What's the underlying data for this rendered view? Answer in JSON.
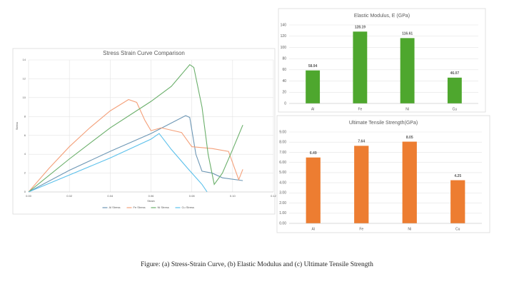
{
  "chart_data": [
    {
      "type": "line",
      "title": "Stress Strain Curve Comparison",
      "x_label": "Strain",
      "y_label": "Stress",
      "xlim": [
        0,
        0.12
      ],
      "xticks": [
        {
          "value": 0,
          "label": "0.00"
        },
        {
          "value": 0.02,
          "label": "0.02"
        },
        {
          "value": 0.04,
          "label": "0.04"
        },
        {
          "value": 0.06,
          "label": "0.06"
        },
        {
          "value": 0.08,
          "label": "0.08"
        },
        {
          "value": 0.1,
          "label": "0.10"
        },
        {
          "value": 0.12,
          "label": "0.12"
        }
      ],
      "ylim": [
        0,
        14
      ],
      "yticks": [
        0,
        2,
        4,
        6,
        8,
        10,
        12,
        14
      ],
      "grid": true,
      "legend": "bottom",
      "series": [
        {
          "name": "Al Stress",
          "color": "#6d97b5",
          "x": [
            0,
            0.02,
            0.04,
            0.06,
            0.077,
            0.079,
            0.082,
            0.085,
            0.09,
            0.095,
            0.105
          ],
          "values": [
            0,
            2.3,
            4.3,
            6.2,
            8.1,
            7.9,
            4,
            2.2,
            2.0,
            1.5,
            1.2
          ]
        },
        {
          "name": "Fe Stress",
          "color": "#f4a07a",
          "x": [
            0,
            0.01,
            0.02,
            0.03,
            0.04,
            0.049,
            0.053,
            0.057,
            0.06,
            0.065,
            0.075,
            0.08,
            0.09,
            0.098,
            0.103,
            0.105
          ],
          "values": [
            0,
            2.5,
            4.8,
            6.8,
            8.6,
            9.8,
            9.5,
            7.6,
            6.5,
            6.8,
            6.3,
            4.8,
            4.6,
            4.3,
            1.3,
            2.4
          ]
        },
        {
          "name": "Ni Stress",
          "color": "#6aaf6a",
          "x": [
            0,
            0.02,
            0.04,
            0.06,
            0.07,
            0.079,
            0.081,
            0.085,
            0.088,
            0.091,
            0.095,
            0.1,
            0.105
          ],
          "values": [
            0,
            3.5,
            6.8,
            9.6,
            11.2,
            13.5,
            13.2,
            9,
            4,
            0.8,
            2,
            4.5,
            7.1
          ]
        },
        {
          "name": "Cu Stress",
          "color": "#5bc0eb",
          "x": [
            0,
            0.02,
            0.04,
            0.06,
            0.064,
            0.07,
            0.078,
            0.085,
            0.0875
          ],
          "values": [
            0,
            1.8,
            3.6,
            5.6,
            6.2,
            4.5,
            2.5,
            0.8,
            0
          ]
        }
      ]
    },
    {
      "type": "bar",
      "title": "Elastic Modulus, E (GPa)",
      "categories": [
        "Al",
        "Fe",
        "Ni",
        "Cu"
      ],
      "values": [
        58.94,
        128.19,
        116.61,
        46.07
      ],
      "color": "#4ea72e",
      "ylim": [
        0,
        140
      ],
      "yticks": [
        0,
        20,
        40,
        60,
        80,
        100,
        120,
        140
      ],
      "grid": true
    },
    {
      "type": "bar",
      "title": "Ultimate Tensile Strength(GPa)",
      "categories": [
        "Al",
        "Fe",
        "Ni",
        "Cu"
      ],
      "values": [
        6.49,
        7.64,
        8.05,
        4.25
      ],
      "color": "#ed7d31",
      "ylim": [
        0,
        9
      ],
      "yticks": [
        {
          "value": 0,
          "label": "0.00"
        },
        {
          "value": 1,
          "label": "1.00"
        },
        {
          "value": 2,
          "label": "2.00"
        },
        {
          "value": 3,
          "label": "3.00"
        },
        {
          "value": 4,
          "label": "4.00"
        },
        {
          "value": 5,
          "label": "5.00"
        },
        {
          "value": 6,
          "label": "6.00"
        },
        {
          "value": 7,
          "label": "7.00"
        },
        {
          "value": 8,
          "label": "8.00"
        },
        {
          "value": 9,
          "label": "9.00"
        }
      ],
      "grid": true
    }
  ],
  "caption": "Figure: (a) Stress-Strain Curve, (b) Elastic Modulus and (c) Ultimate Tensile Strength"
}
